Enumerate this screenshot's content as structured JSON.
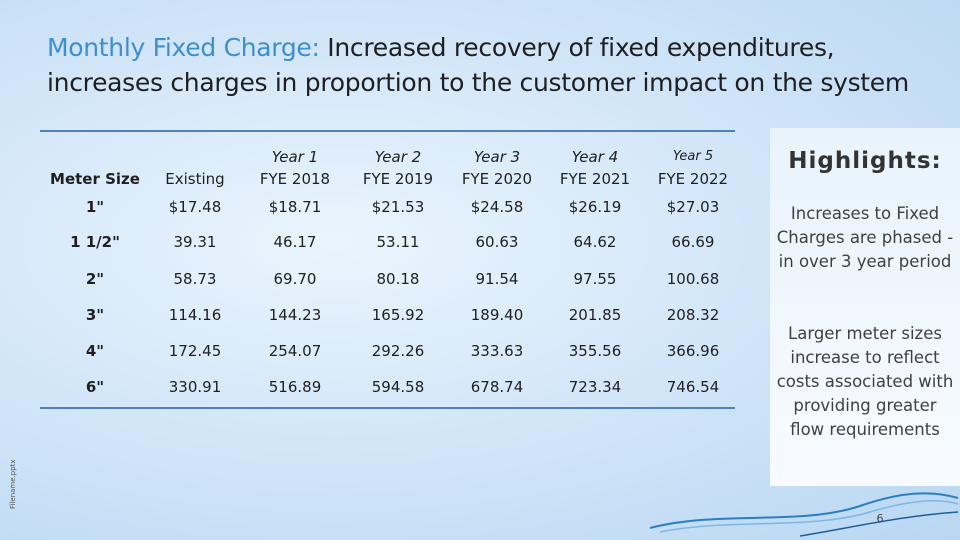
{
  "slide": {
    "title_lead": "Monthly Fixed Charge:",
    "title_rest": "Increased recovery of fixed expenditures, increases charges in proportion to the customer impact on the system",
    "side_label": "Filename.pptx",
    "page_number": "6"
  },
  "table": {
    "header": [
      [
        "Meter Size"
      ],
      [
        "Existing"
      ],
      [
        "Year 1",
        "FYE 2018"
      ],
      [
        "Year 2",
        "FYE 2019"
      ],
      [
        "Year 3",
        "FYE 2020"
      ],
      [
        "Year 4",
        "FYE 2021"
      ],
      [
        "Year 5",
        "FYE 2022"
      ]
    ],
    "rows": [
      [
        "1\"",
        "$17.48",
        "$18.71",
        "$21.53",
        "$24.58",
        "$26.19",
        "$27.03"
      ],
      [
        "1 1/2\"",
        "39.31",
        "46.17",
        "53.11",
        "60.63",
        "64.62",
        "66.69"
      ],
      [
        "2\"",
        "58.73",
        "69.70",
        "80.18",
        "91.54",
        "97.55",
        "100.68"
      ],
      [
        "3\"",
        "114.16",
        "144.23",
        "165.92",
        "189.40",
        "201.85",
        "208.32"
      ],
      [
        "4\"",
        "172.45",
        "254.07",
        "292.26",
        "333.63",
        "355.56",
        "366.96"
      ],
      [
        "6\"",
        "330.91",
        "516.89",
        "594.58",
        "678.74",
        "723.34",
        "746.54"
      ]
    ]
  },
  "highlights": {
    "title": "Highlights:",
    "points": [
      "Increases to Fixed Charges are phased -in over 3 year period",
      "Larger meter sizes increase to reflect costs associated with providing greater flow requirements"
    ]
  }
}
